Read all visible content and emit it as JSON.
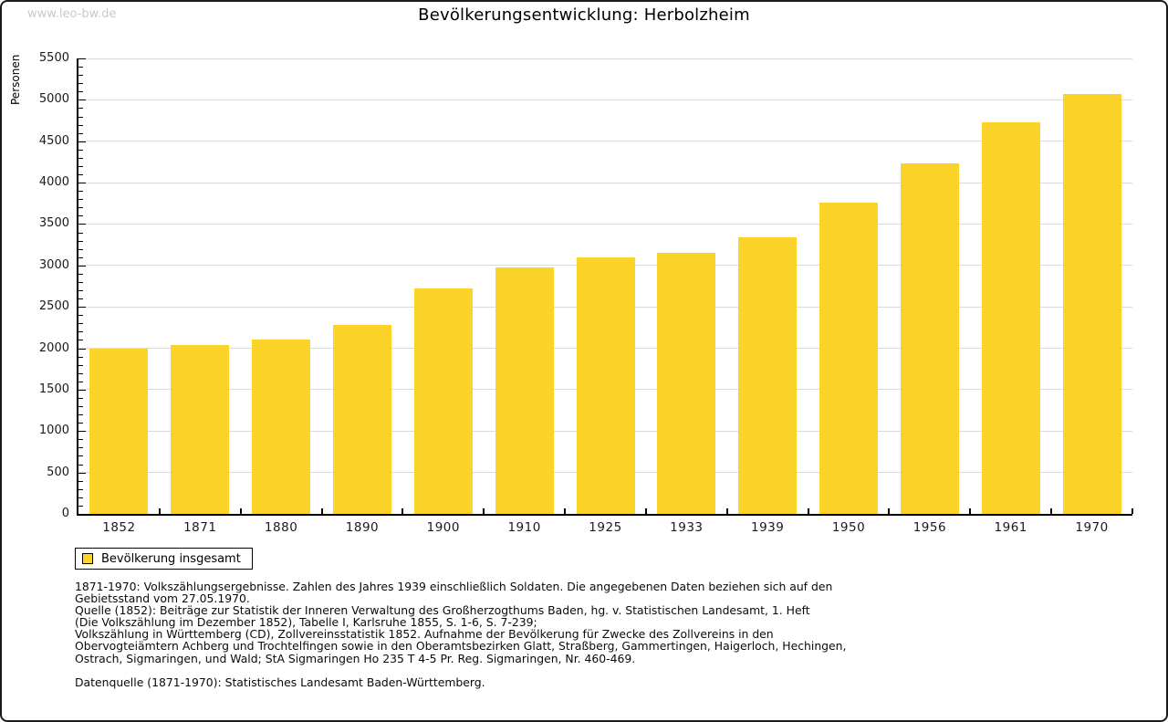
{
  "page": {
    "watermark": "www.leo-bw.de"
  },
  "header": {
    "title": "Bevölkerungsentwicklung: Herbolzheim"
  },
  "chart_data": {
    "type": "bar",
    "title": "Bevölkerungsentwicklung: Herbolzheim",
    "ylabel": "Personen",
    "xlabel": "",
    "ylim": [
      0,
      5500
    ],
    "ytick_step": 500,
    "yminor_step": 100,
    "grid": true,
    "legend_position": "bottom-left",
    "legend_entries": [
      "Bevölkerung insgesamt"
    ],
    "bar_color": "#FCD328",
    "categories": [
      "1852",
      "1871",
      "1880",
      "1890",
      "1900",
      "1910",
      "1925",
      "1933",
      "1939",
      "1950",
      "1956",
      "1961",
      "1970"
    ],
    "values": [
      1990,
      2040,
      2110,
      2280,
      2725,
      2975,
      3100,
      3150,
      3340,
      3760,
      4230,
      4730,
      5070
    ]
  },
  "legend": {
    "label": "Bevölkerung insgesamt"
  },
  "footnotes": {
    "lines": [
      "1871-1970: Volkszählungsergebnisse. Zahlen des Jahres 1939 einschließlich Soldaten. Die angegebenen Daten beziehen sich auf den",
      "Gebietsstand vom 27.05.1970.",
      "Quelle (1852): Beiträge zur Statistik der Inneren Verwaltung des Großherzogthums Baden, hg. v. Statistischen Landesamt, 1. Heft",
      "(Die Volkszählung im Dezember 1852), Tabelle I, Karlsruhe 1855, S. 1-6, S. 7-239;",
      "Volkszählung in Württemberg (CD), Zollvereinsstatistik 1852. Aufnahme der Bevölkerung für Zwecke des Zollvereins in den",
      "Obervogteiämtern Achberg und Trochtelfingen sowie in den Oberamtsbezirken Glatt, Straßberg, Gammertingen, Haigerloch, Hechingen,",
      "Ostrach, Sigmaringen, und Wald; StA Sigmaringen Ho 235 T 4-5 Pr. Reg. Sigmaringen, Nr. 460-469."
    ],
    "datasource": "Datenquelle (1871-1970): Statistisches Landesamt Baden-Württemberg."
  },
  "colors": {
    "bar": "#FCD328",
    "gridline": "#DBDBDB",
    "axis": "#000000",
    "watermark": "#C9C9C9",
    "frame_border": "#111111"
  }
}
